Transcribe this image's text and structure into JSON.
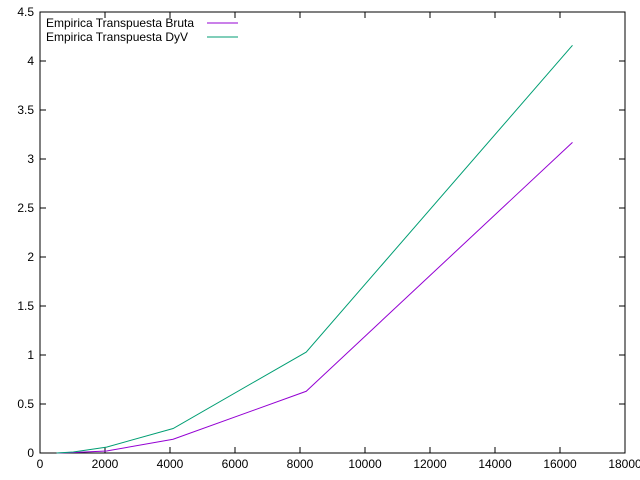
{
  "chart_data": {
    "type": "line",
    "title": "",
    "xlabel": "",
    "ylabel": "",
    "xlim": [
      0,
      18000
    ],
    "ylim": [
      0,
      4.5
    ],
    "xticks": [
      0,
      2000,
      4000,
      6000,
      8000,
      10000,
      12000,
      14000,
      16000,
      18000
    ],
    "xtick_labels": [
      "0",
      "2000",
      "4000",
      "6000",
      "8000",
      "10000",
      "12000",
      "14000",
      "16000",
      "18000"
    ],
    "yticks": [
      0,
      0.5,
      1,
      1.5,
      2,
      2.5,
      3,
      3.5,
      4,
      4.5
    ],
    "ytick_labels": [
      "0",
      "0.5",
      "1",
      "1.5",
      "2",
      "2.5",
      "3",
      "3.5",
      "4",
      "4.5"
    ],
    "grid": false,
    "legend_position": "top-left",
    "series": [
      {
        "name": "Empirica Transpuesta Bruta",
        "color": "#9400d3",
        "x": [
          512,
          1024,
          2048,
          4096,
          8192,
          16384
        ],
        "y": [
          0.0,
          0.005,
          0.02,
          0.14,
          0.63,
          3.17
        ]
      },
      {
        "name": "Empirica Transpuesta DyV",
        "color": "#009e73",
        "x": [
          512,
          1024,
          2048,
          4096,
          8192,
          16384
        ],
        "y": [
          0.0,
          0.01,
          0.06,
          0.25,
          1.03,
          4.16
        ]
      }
    ]
  }
}
